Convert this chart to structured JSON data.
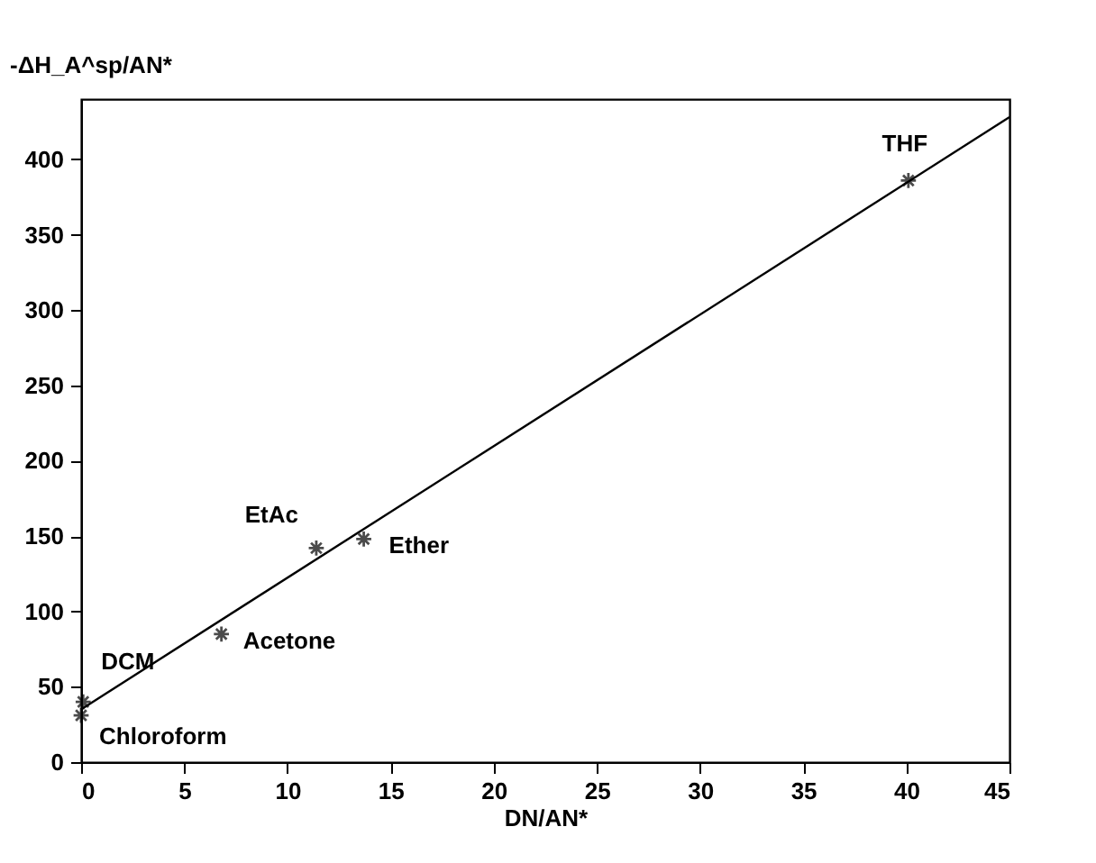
{
  "chart_data": {
    "type": "scatter",
    "xlabel": "DN/AN*",
    "ylabel": "-ΔH_A^sp/AN*",
    "xlim": [
      0,
      45
    ],
    "xticks": [
      0,
      5,
      10,
      15,
      20,
      25,
      30,
      35,
      40,
      45
    ],
    "ylim": [
      0,
      440
    ],
    "yticks": [
      0,
      50,
      100,
      150,
      200,
      250,
      300,
      350,
      400
    ],
    "grid": false,
    "series": [
      {
        "color": "#000000",
        "marker": "cross",
        "x": [
          0.1,
          0,
          6.8,
          11.4,
          13.7,
          40.1
        ],
        "values": [
          40,
          31,
          85,
          142,
          148,
          386
        ]
      },
      {
        "type": "line",
        "color": "#000000",
        "line_style": "solid",
        "x": [
          0,
          45
        ],
        "values": [
          35,
          428
        ]
      }
    ],
    "annotations": [
      {
        "text": "DCM",
        "x": 0.1,
        "y": 40
      },
      {
        "text": "Chloroform",
        "x": 0,
        "y": 31
      },
      {
        "text": "Acetone",
        "x": 6.8,
        "y": 85
      },
      {
        "text": "EtAc",
        "x": 11.4,
        "y": 142
      },
      {
        "text": "Ether",
        "x": 13.7,
        "y": 148
      },
      {
        "text": "THF",
        "x": 40.1,
        "y": 386
      }
    ]
  }
}
